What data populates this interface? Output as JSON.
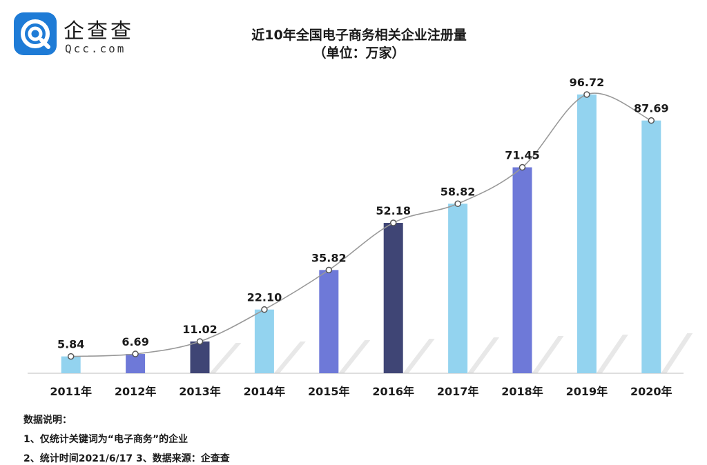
{
  "brand": {
    "name_cn": "企查查",
    "domain": "Qcc.com"
  },
  "title": "近10年全国电子商务相关企业注册量",
  "subtitle": "（单位：万家）",
  "colors": {
    "light": "#93d3ef",
    "mid": "#6e79d8",
    "dark": "#3f4575",
    "line": "#999999",
    "logo": "#1e7bd6"
  },
  "chart_data": {
    "type": "bar",
    "title": "近10年全国电子商务相关企业注册量",
    "subtitle": "（单位：万家）",
    "categories": [
      "2011年",
      "2012年",
      "2013年",
      "2014年",
      "2015年",
      "2016年",
      "2017年",
      "2018年",
      "2019年",
      "2020年"
    ],
    "values": [
      5.84,
      6.69,
      11.02,
      22.1,
      35.82,
      52.18,
      58.82,
      71.45,
      96.72,
      87.69
    ],
    "value_labels": [
      "5.84",
      "6.69",
      "11.02",
      "22.10",
      "35.82",
      "52.18",
      "58.82",
      "71.45",
      "96.72",
      "87.69"
    ],
    "bar_colors": [
      "light",
      "mid",
      "dark",
      "light",
      "mid",
      "dark",
      "light",
      "mid",
      "light",
      "light"
    ],
    "overlay": "smoothed line through bar tops with circle markers",
    "ylim": [
      0,
      100
    ],
    "xlabel": "",
    "ylabel": ""
  },
  "notes": {
    "heading": "数据说明：",
    "line1": "1、仅统计关键词为“电子商务”的企业",
    "line2": "2、统计时间2021/6/17   3、数据来源：企查查"
  }
}
